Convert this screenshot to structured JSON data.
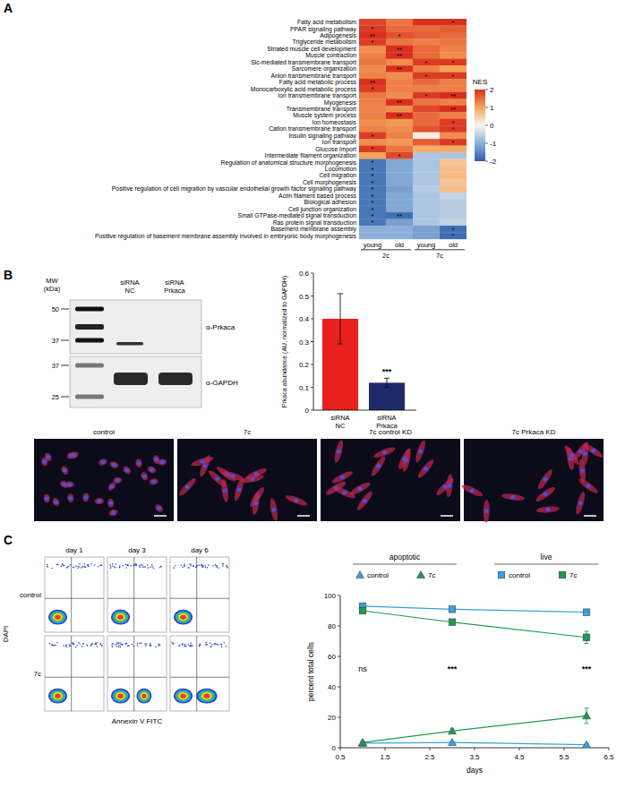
{
  "chart_data": [
    {
      "type": "heatmap",
      "panel": "A",
      "rows": [
        "Fatty acid metabolism",
        "PPAR signaling pathway",
        "Adipogenesis",
        "Triglyceride metabolism",
        "Striated muscle cell development",
        "Muscle contraction",
        "Slc-mediated transmembrane transport",
        "Sarcomere organization",
        "Anion transmembrane transport",
        "Fatty acid metabolic process",
        "Monocarboxylic acid metabolic process",
        "Ion transmembrane transport",
        "Myogenesis",
        "Transmembrane transport",
        "Muscle system process",
        "Ion homeostasis",
        "Cation transmembrane transport",
        "Insulin signaling pathway",
        "Ion transport",
        "Glucose import",
        "Intermediate filament organization",
        "Regulation of anatomical structure morphogenesis",
        "Locomotion",
        "Cell migration",
        "Cell morphogenesis",
        "Positive regulation of cell migration by vascular endothelial growth factor signaling pathway",
        "Actin filament based process",
        "Biological adhesion",
        "Cell junction organization",
        "Small GTPase-mediated signal transduction",
        "Ras protein signal transduction",
        "Basement membrane assembly",
        "Positive regulation of basement membrane assembly involved in embryonic body morphogenesis"
      ],
      "columns": [
        "young",
        "old",
        "young",
        "old"
      ],
      "column_groups": [
        "2c",
        "7c"
      ],
      "values": [
        [
          1.8,
          1.4,
          2.0,
          2.1
        ],
        [
          1.9,
          1.5,
          1.5,
          1.6
        ],
        [
          2.0,
          1.7,
          1.6,
          1.5
        ],
        [
          1.9,
          1.4,
          1.3,
          1.4
        ],
        [
          1.2,
          2.0,
          1.5,
          1.3
        ],
        [
          1.3,
          2.0,
          1.5,
          1.2
        ],
        [
          1.4,
          1.2,
          1.9,
          1.9
        ],
        [
          1.2,
          2.0,
          1.3,
          1.0
        ],
        [
          1.3,
          1.2,
          1.9,
          1.9
        ],
        [
          2.0,
          1.3,
          1.5,
          1.3
        ],
        [
          1.9,
          1.3,
          1.3,
          1.3
        ],
        [
          1.4,
          1.2,
          1.9,
          2.0
        ],
        [
          1.3,
          2.0,
          1.4,
          1.3
        ],
        [
          1.3,
          1.2,
          1.8,
          2.0
        ],
        [
          1.3,
          2.0,
          1.5,
          1.3
        ],
        [
          1.2,
          1.1,
          1.5,
          1.9
        ],
        [
          1.3,
          1.2,
          1.7,
          1.9
        ],
        [
          1.9,
          1.3,
          0.1,
          1.2
        ],
        [
          1.2,
          1.1,
          1.6,
          1.9
        ],
        [
          1.9,
          1.4,
          0.9,
          0.9
        ],
        [
          1.0,
          1.8,
          -0.7,
          -0.7
        ],
        [
          -1.7,
          -1.1,
          -0.7,
          0.6
        ],
        [
          -1.7,
          -1.1,
          -0.7,
          0.7
        ],
        [
          -1.7,
          -1.1,
          -0.7,
          0.7
        ],
        [
          -1.7,
          -1.1,
          -0.7,
          0.6
        ],
        [
          -1.7,
          -1.2,
          -0.6,
          0.7
        ],
        [
          -1.7,
          -1.1,
          -0.7,
          -0.5
        ],
        [
          -1.7,
          -1.1,
          -0.7,
          -0.6
        ],
        [
          -1.7,
          -1.1,
          -0.7,
          -0.6
        ],
        [
          -1.7,
          -1.8,
          -0.7,
          -0.6
        ],
        [
          -1.7,
          -1.2,
          -0.7,
          -0.5
        ],
        [
          -1.0,
          -1.0,
          -1.2,
          -1.8
        ],
        [
          -1.0,
          -1.0,
          -1.2,
          -1.8
        ]
      ],
      "stars": [
        [
          null,
          null,
          null,
          "*"
        ],
        [
          "*",
          null,
          null,
          null
        ],
        [
          "**",
          "*",
          null,
          null
        ],
        [
          "*",
          null,
          null,
          null
        ],
        [
          null,
          "**",
          null,
          null
        ],
        [
          null,
          "**",
          null,
          null
        ],
        [
          null,
          null,
          "*",
          "*"
        ],
        [
          null,
          "**",
          null,
          null
        ],
        [
          null,
          null,
          "*",
          "*"
        ],
        [
          "**",
          null,
          null,
          null
        ],
        [
          "*",
          null,
          null,
          null
        ],
        [
          null,
          null,
          "*",
          "**"
        ],
        [
          null,
          "**",
          null,
          null
        ],
        [
          null,
          null,
          null,
          "**"
        ],
        [
          null,
          "**",
          null,
          null
        ],
        [
          null,
          null,
          null,
          "*"
        ],
        [
          null,
          null,
          null,
          "*"
        ],
        [
          "*",
          null,
          null,
          null
        ],
        [
          null,
          null,
          null,
          "*"
        ],
        [
          "*",
          null,
          null,
          null
        ],
        [
          null,
          "*",
          null,
          null
        ],
        [
          "*",
          null,
          null,
          null
        ],
        [
          "*",
          null,
          null,
          null
        ],
        [
          "*",
          null,
          null,
          null
        ],
        [
          "*",
          null,
          null,
          null
        ],
        [
          "*",
          null,
          null,
          null
        ],
        [
          "*",
          null,
          null,
          null
        ],
        [
          "*",
          null,
          null,
          null
        ],
        [
          "*",
          null,
          null,
          null
        ],
        [
          "*",
          "**",
          null,
          null
        ],
        [
          "*",
          null,
          null,
          null
        ],
        [
          null,
          null,
          null,
          "*"
        ],
        [
          null,
          null,
          null,
          "*"
        ]
      ],
      "colorbar_label": "NES",
      "colorbar_range": [
        -2,
        2
      ],
      "colorbar_ticks": [
        -2,
        -1,
        0,
        1,
        2
      ]
    },
    {
      "type": "bar",
      "panel": "B",
      "categories": [
        "siRNA NC",
        "siRNA Prkaca"
      ],
      "values": [
        0.4,
        0.12
      ],
      "errors": [
        0.11,
        0.02
      ],
      "colors": [
        "#e8211f",
        "#1f2a6b"
      ],
      "y_label": "Prkaca abundance (AU, normalized to GAPDH)",
      "ylim": [
        0,
        0.6
      ],
      "yticks": [
        0,
        0.1,
        0.2,
        0.3,
        0.4,
        0.5,
        0.6
      ],
      "annotations": [
        {
          "text": "***",
          "category": "siRNA Prkaca"
        }
      ]
    },
    {
      "type": "line",
      "panel": "C",
      "x": [
        1,
        3,
        6
      ],
      "series": [
        {
          "name": "control",
          "group": "apoptotic",
          "color": "#3aa0dc",
          "marker": "triangle",
          "line_style": "solid",
          "values": [
            3,
            3.5,
            2
          ],
          "errors": [
            0.5,
            0.5,
            0.5
          ]
        },
        {
          "name": "7c",
          "group": "apoptotic",
          "color": "#1e9b4c",
          "marker": "triangle",
          "line_style": "solid",
          "values": [
            3.5,
            11,
            21
          ],
          "errors": [
            1,
            1.5,
            5
          ]
        },
        {
          "name": "control",
          "group": "live",
          "color": "#3aa0dc",
          "marker": "square",
          "line_style": "solid",
          "values": [
            93,
            91,
            89
          ],
          "errors": [
            1,
            1,
            1
          ]
        },
        {
          "name": "7c",
          "group": "live",
          "color": "#1e9b4c",
          "marker": "square",
          "line_style": "solid",
          "values": [
            90,
            82.5,
            72.5
          ],
          "errors": [
            1.5,
            1.5,
            4
          ]
        }
      ],
      "x_label": "days",
      "y_label": "percent total cells",
      "xlim": [
        0.5,
        6.5
      ],
      "xticks": [
        0.5,
        1.5,
        2.5,
        3.5,
        4.5,
        5.5,
        6.5
      ],
      "ylim": [
        0,
        100
      ],
      "yticks": [
        0,
        20,
        40,
        60,
        80,
        100
      ],
      "annotations": [
        {
          "text": "ns",
          "x": 1,
          "y": 50
        },
        {
          "text": "***",
          "x": 3,
          "y": 50
        },
        {
          "text": "***",
          "x": 6,
          "y": 50
        }
      ]
    }
  ],
  "blot": {
    "mw_label": "MW (kDa)",
    "lanes": [
      "siRNA NC",
      "siRNA Prkaca"
    ],
    "blots": [
      {
        "antibody": "α-Prkaca",
        "markers": [
          50,
          37
        ]
      },
      {
        "antibody": "α-GAPDH",
        "markers": [
          37,
          25
        ]
      }
    ]
  },
  "micrographs": {
    "labels": [
      "control",
      "7c",
      "7c control KD",
      "7c Prkaca KD"
    ]
  },
  "flow_cytometry": {
    "columns": [
      "day 1",
      "day 3",
      "day 6"
    ],
    "rows": [
      "control",
      "7c"
    ],
    "x_label": "Annexin V FITC",
    "y_label": "DAPI"
  }
}
